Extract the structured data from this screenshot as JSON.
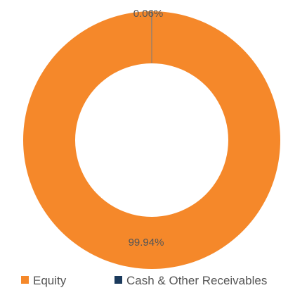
{
  "chart_data": {
    "type": "pie",
    "donut": true,
    "title": "",
    "legend_position": "bottom",
    "slices": [
      {
        "label": "Equity",
        "value": 99.94,
        "display": "99.94%",
        "color": "#f5882a"
      },
      {
        "label": "Cash & Other Receivables",
        "value": 0.06,
        "display": "0.06%",
        "color": "#1b3a5c"
      }
    ]
  }
}
